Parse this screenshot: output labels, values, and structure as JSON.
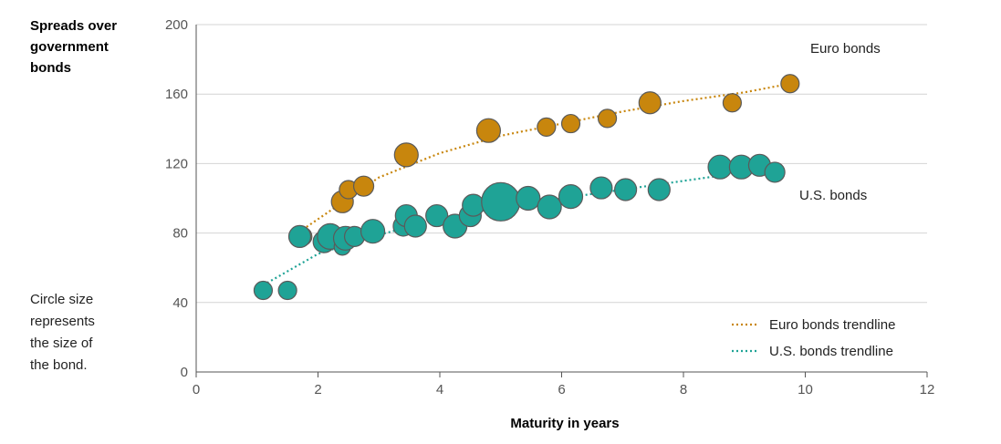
{
  "chart_data": {
    "type": "scatter",
    "xlabel": "Maturity in years",
    "ylabel_lines": [
      "Spreads over",
      "government",
      "bonds"
    ],
    "xlim": [
      0,
      12
    ],
    "ylim": [
      0,
      200
    ],
    "xticks": [
      0,
      2,
      4,
      6,
      8,
      10,
      12
    ],
    "yticks": [
      0,
      40,
      80,
      120,
      160,
      200
    ],
    "grid": "horizontal",
    "note_lines": [
      "Circle size",
      "represents",
      "the size of",
      "the bond."
    ],
    "series": [
      {
        "name": "Euro bonds",
        "color": "#c8860d",
        "points": [
          {
            "x": 1.75,
            "y": 78,
            "size": 1.0
          },
          {
            "x": 2.4,
            "y": 98,
            "size": 1.2
          },
          {
            "x": 2.5,
            "y": 105,
            "size": 1.0
          },
          {
            "x": 2.75,
            "y": 107,
            "size": 1.1
          },
          {
            "x": 3.45,
            "y": 125,
            "size": 1.3
          },
          {
            "x": 4.8,
            "y": 139,
            "size": 1.3
          },
          {
            "x": 5.75,
            "y": 141,
            "size": 1.0
          },
          {
            "x": 6.15,
            "y": 143,
            "size": 1.0
          },
          {
            "x": 6.75,
            "y": 146,
            "size": 1.0
          },
          {
            "x": 7.45,
            "y": 155,
            "size": 1.2
          },
          {
            "x": 8.8,
            "y": 155,
            "size": 1.0
          },
          {
            "x": 9.75,
            "y": 166,
            "size": 1.0
          }
        ]
      },
      {
        "name": "U.S. bonds",
        "color": "#1fa396",
        "points": [
          {
            "x": 1.1,
            "y": 47,
            "size": 1.0
          },
          {
            "x": 1.5,
            "y": 47,
            "size": 1.0
          },
          {
            "x": 1.7,
            "y": 78,
            "size": 1.2
          },
          {
            "x": 2.1,
            "y": 75,
            "size": 1.2
          },
          {
            "x": 2.2,
            "y": 78,
            "size": 1.4
          },
          {
            "x": 2.4,
            "y": 72,
            "size": 0.9
          },
          {
            "x": 2.45,
            "y": 77,
            "size": 1.3
          },
          {
            "x": 2.6,
            "y": 78,
            "size": 1.1
          },
          {
            "x": 2.9,
            "y": 81,
            "size": 1.3
          },
          {
            "x": 3.4,
            "y": 84,
            "size": 1.1
          },
          {
            "x": 3.45,
            "y": 90,
            "size": 1.2
          },
          {
            "x": 3.6,
            "y": 84,
            "size": 1.2
          },
          {
            "x": 3.95,
            "y": 90,
            "size": 1.2
          },
          {
            "x": 4.25,
            "y": 84,
            "size": 1.3
          },
          {
            "x": 4.5,
            "y": 90,
            "size": 1.2
          },
          {
            "x": 4.55,
            "y": 96,
            "size": 1.2
          },
          {
            "x": 5.0,
            "y": 98,
            "size": 2.1
          },
          {
            "x": 5.45,
            "y": 100,
            "size": 1.3
          },
          {
            "x": 5.8,
            "y": 95,
            "size": 1.3
          },
          {
            "x": 6.15,
            "y": 101,
            "size": 1.3
          },
          {
            "x": 6.65,
            "y": 106,
            "size": 1.2
          },
          {
            "x": 7.05,
            "y": 105,
            "size": 1.2
          },
          {
            "x": 7.6,
            "y": 105,
            "size": 1.2
          },
          {
            "x": 8.6,
            "y": 118,
            "size": 1.3
          },
          {
            "x": 8.95,
            "y": 118,
            "size": 1.3
          },
          {
            "x": 9.25,
            "y": 119,
            "size": 1.2
          },
          {
            "x": 9.5,
            "y": 115,
            "size": 1.1
          }
        ]
      }
    ],
    "trendlines": [
      {
        "name": "Euro bonds trendline",
        "color": "#c8860d",
        "x_from": 1.75,
        "x_to": 9.75,
        "points": [
          {
            "x": 1.75,
            "y": 82
          },
          {
            "x": 3,
            "y": 112
          },
          {
            "x": 4,
            "y": 126
          },
          {
            "x": 5,
            "y": 136
          },
          {
            "x": 6,
            "y": 143
          },
          {
            "x": 7,
            "y": 150
          },
          {
            "x": 8,
            "y": 156
          },
          {
            "x": 9,
            "y": 161
          },
          {
            "x": 9.75,
            "y": 166
          }
        ]
      },
      {
        "name": "U.S. bonds trendline",
        "color": "#1fa396",
        "x_from": 1.1,
        "x_to": 8.6,
        "points": [
          {
            "x": 1.1,
            "y": 50
          },
          {
            "x": 2,
            "y": 68
          },
          {
            "x": 3,
            "y": 79
          },
          {
            "x": 4,
            "y": 88
          },
          {
            "x": 5,
            "y": 95
          },
          {
            "x": 6,
            "y": 100
          },
          {
            "x": 7,
            "y": 105
          },
          {
            "x": 8,
            "y": 110
          },
          {
            "x": 8.6,
            "y": 113
          }
        ]
      }
    ],
    "legend_position": "bottom-right"
  }
}
